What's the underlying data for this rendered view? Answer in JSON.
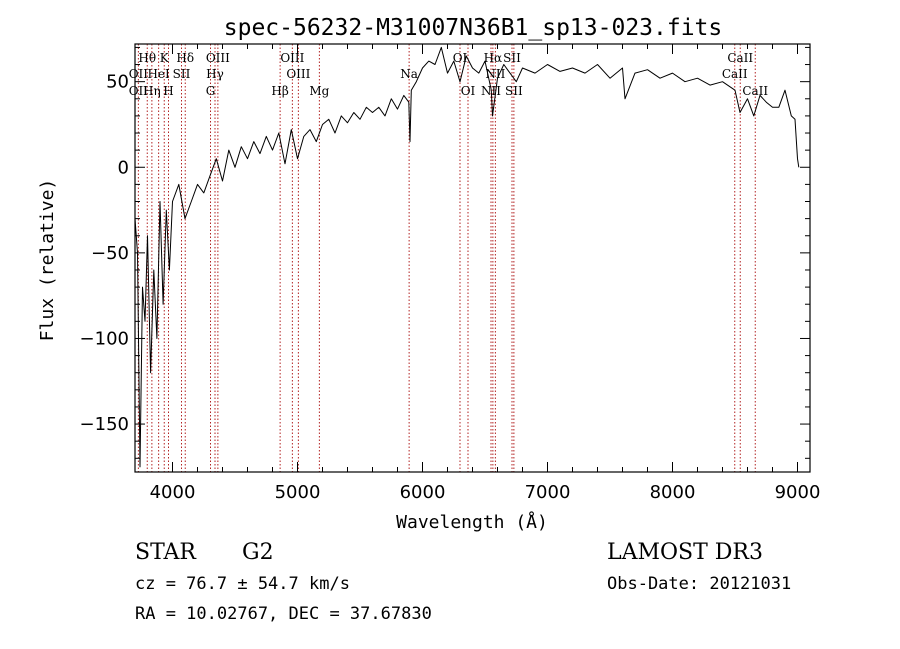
{
  "chart_data": {
    "type": "line",
    "title": "spec-56232-M31007N36B1_sp13-023.fits",
    "xlabel": "Wavelength (Å)",
    "ylabel": "Flux (relative)",
    "xlim": [
      3700,
      9100
    ],
    "ylim": [
      -178,
      72
    ],
    "xticks": [
      4000,
      5000,
      6000,
      7000,
      8000,
      9000
    ],
    "yticks": [
      -150,
      -100,
      -50,
      0,
      50
    ],
    "grid": false,
    "series": [
      {
        "name": "flux",
        "x": [
          3700,
          3720,
          3740,
          3760,
          3780,
          3800,
          3825,
          3850,
          3875,
          3900,
          3925,
          3950,
          3975,
          4000,
          4050,
          4100,
          4150,
          4200,
          4250,
          4300,
          4350,
          4400,
          4450,
          4500,
          4550,
          4600,
          4650,
          4700,
          4750,
          4800,
          4850,
          4900,
          4950,
          5000,
          5050,
          5100,
          5150,
          5200,
          5250,
          5300,
          5350,
          5400,
          5450,
          5500,
          5550,
          5600,
          5650,
          5700,
          5750,
          5800,
          5850,
          5890,
          5900,
          5910,
          5950,
          6000,
          6050,
          6100,
          6150,
          6200,
          6250,
          6300,
          6350,
          6400,
          6450,
          6500,
          6550,
          6560,
          6600,
          6650,
          6700,
          6750,
          6800,
          6900,
          7000,
          7100,
          7200,
          7300,
          7400,
          7500,
          7600,
          7620,
          7700,
          7800,
          7900,
          8000,
          8100,
          8200,
          8300,
          8400,
          8500,
          8540,
          8600,
          8650,
          8700,
          8750,
          8800,
          8850,
          8900,
          8950,
          8980,
          9000,
          9010
        ],
        "y": [
          -30,
          -50,
          -175,
          -70,
          -90,
          -40,
          -120,
          -60,
          -100,
          -20,
          -80,
          -25,
          -60,
          -20,
          -10,
          -30,
          -20,
          -10,
          -15,
          -5,
          5,
          -8,
          10,
          0,
          12,
          5,
          15,
          8,
          18,
          10,
          20,
          2,
          22,
          5,
          18,
          22,
          15,
          25,
          28,
          20,
          30,
          26,
          32,
          28,
          35,
          32,
          35,
          30,
          40,
          34,
          42,
          38,
          15,
          45,
          50,
          58,
          62,
          60,
          70,
          55,
          62,
          50,
          65,
          58,
          55,
          62,
          45,
          30,
          52,
          60,
          55,
          50,
          58,
          55,
          60,
          56,
          58,
          55,
          60,
          52,
          58,
          40,
          55,
          57,
          52,
          55,
          50,
          52,
          48,
          50,
          45,
          32,
          40,
          30,
          42,
          38,
          35,
          35,
          45,
          30,
          28,
          5,
          0
        ]
      }
    ],
    "lines": [
      {
        "name": "OII",
        "x": 3727
      },
      {
        "name": "Hθ",
        "x": 3798
      },
      {
        "name": "Hη",
        "x": 3835
      },
      {
        "name": "HeI",
        "x": 3889
      },
      {
        "name": "K",
        "x": 3934
      },
      {
        "name": "H",
        "x": 3968
      },
      {
        "name": "SII",
        "x": 4072
      },
      {
        "name": "Hδ",
        "x": 4102
      },
      {
        "name": "G",
        "x": 4304
      },
      {
        "name": "Hγ",
        "x": 4340
      },
      {
        "name": "OIII",
        "x": 4363
      },
      {
        "name": "Hβ",
        "x": 4861
      },
      {
        "name": "OIII",
        "x": 4959
      },
      {
        "name": "OIII",
        "x": 5007
      },
      {
        "name": "Mg",
        "x": 5175
      },
      {
        "name": "Na",
        "x": 5893
      },
      {
        "name": "OI",
        "x": 6300
      },
      {
        "name": "OI",
        "x": 6364
      },
      {
        "name": "NII",
        "x": 6548
      },
      {
        "name": "Hα",
        "x": 6563
      },
      {
        "name": "NII",
        "x": 6583
      },
      {
        "name": "SII",
        "x": 6716
      },
      {
        "name": "SII",
        "x": 6731
      },
      {
        "name": "CaII",
        "x": 8498
      },
      {
        "name": "CaII",
        "x": 8542
      },
      {
        "name": "CaII",
        "x": 8662
      }
    ],
    "line_labels": [
      {
        "text": "Hθ",
        "x": 3798,
        "row": 0
      },
      {
        "text": "K",
        "x": 3934,
        "row": 0
      },
      {
        "text": "Hδ",
        "x": 4102,
        "row": 0
      },
      {
        "text": "OIII",
        "x": 4363,
        "row": 0
      },
      {
        "text": "OIII",
        "x": 4959,
        "row": 0
      },
      {
        "text": "OI",
        "x": 6300,
        "row": 0
      },
      {
        "text": "Hα",
        "x": 6563,
        "row": 0
      },
      {
        "text": "SII",
        "x": 6716,
        "row": 0
      },
      {
        "text": "CaII",
        "x": 8542,
        "row": 0
      },
      {
        "text": "OII",
        "x": 3727,
        "row": 1
      },
      {
        "text": "HeI",
        "x": 3889,
        "row": 1
      },
      {
        "text": "SII",
        "x": 4072,
        "row": 1
      },
      {
        "text": "Hγ",
        "x": 4340,
        "row": 1
      },
      {
        "text": "OIII",
        "x": 5007,
        "row": 1
      },
      {
        "text": "Na",
        "x": 5893,
        "row": 1
      },
      {
        "text": "NII",
        "x": 6583,
        "row": 1
      },
      {
        "text": "CaII",
        "x": 8498,
        "row": 1
      },
      {
        "text": "OII",
        "x": 3727,
        "row": 2
      },
      {
        "text": "Hη",
        "x": 3835,
        "row": 2
      },
      {
        "text": "H",
        "x": 3968,
        "row": 2
      },
      {
        "text": "G",
        "x": 4304,
        "row": 2
      },
      {
        "text": "Hβ",
        "x": 4861,
        "row": 2
      },
      {
        "text": "Mg",
        "x": 5175,
        "row": 2
      },
      {
        "text": "OI",
        "x": 6364,
        "row": 2
      },
      {
        "text": "NII",
        "x": 6548,
        "row": 2
      },
      {
        "text": "SII",
        "x": 6731,
        "row": 2
      },
      {
        "text": "CaII",
        "x": 8662,
        "row": 2
      }
    ]
  },
  "info": {
    "object_type": "STAR",
    "subclass": "G2",
    "survey": "LAMOST DR3",
    "redshift": "cz = 76.7 ± 54.7 km/s",
    "obs_date": "Obs-Date: 20121031",
    "coords": "RA =  10.02767, DEC =  37.67830"
  },
  "colors": {
    "line_marker": "#b22222",
    "spectrum": "#000000"
  }
}
